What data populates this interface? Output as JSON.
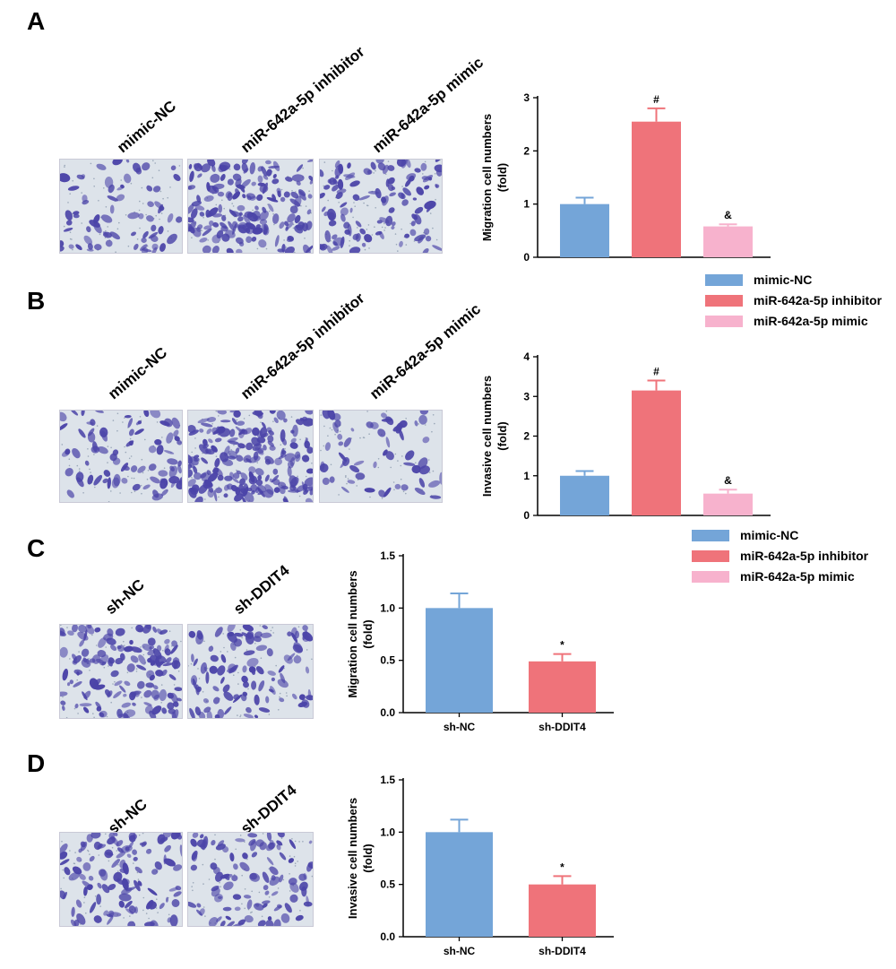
{
  "panels": {
    "A": {
      "letter": "A",
      "labels": [
        "mimic-NC",
        "miR-642a-5p inhibitor",
        "miR-642a-5p mimic"
      ]
    },
    "B": {
      "letter": "B",
      "labels": [
        "mimic-NC",
        "miR-642a-5p inhibitor",
        "miR-642a-5p mimic"
      ]
    },
    "C": {
      "letter": "C",
      "labels": [
        "sh-NC",
        "sh-DDIT4"
      ]
    },
    "D": {
      "letter": "D",
      "labels": [
        "sh-NC",
        "sh-DDIT4"
      ]
    }
  },
  "legend1": [
    "mimic-NC",
    "miR-642a-5p inhibitor",
    "miR-642a-5p mimic"
  ],
  "legend2": [
    "mimic-NC",
    "miR-642a-5p inhibitor",
    "miR-642a-5p mimic"
  ],
  "colors": {
    "blue": "#74a5d8",
    "red": "#ef737a",
    "pink": "#f7b2cd",
    "stain": "#4b44a8"
  },
  "chart_data": [
    {
      "id": "A",
      "type": "bar",
      "ylabel": "Migration cell numbers\n(fold)",
      "categories": [
        "mimic-NC",
        "miR-642a-5p inhibitor",
        "miR-642a-5p mimic"
      ],
      "values": [
        1.0,
        2.55,
        0.58
      ],
      "errors": [
        0.12,
        0.25,
        0.04
      ],
      "annotations": [
        "",
        "#",
        "&"
      ],
      "ylim": [
        0,
        3
      ],
      "yticks": [
        "0",
        "1",
        "2",
        "3"
      ],
      "show_xlabels": false
    },
    {
      "id": "B",
      "type": "bar",
      "ylabel": "Invasive cell numbers\n(fold)",
      "categories": [
        "mimic-NC",
        "miR-642a-5p inhibitor",
        "miR-642a-5p mimic"
      ],
      "values": [
        1.0,
        3.15,
        0.55
      ],
      "errors": [
        0.12,
        0.25,
        0.1
      ],
      "annotations": [
        "",
        "#",
        "&"
      ],
      "ylim": [
        0,
        4
      ],
      "yticks": [
        "0",
        "1",
        "2",
        "3",
        "4"
      ],
      "show_xlabels": false
    },
    {
      "id": "C",
      "type": "bar",
      "ylabel": "Migration cell numbers\n(fold)",
      "categories": [
        "sh-NC",
        "sh-DDIT4"
      ],
      "values": [
        1.0,
        0.49
      ],
      "errors": [
        0.14,
        0.07
      ],
      "annotations": [
        "",
        "*"
      ],
      "ylim": [
        0,
        1.5
      ],
      "yticks": [
        "0.0",
        "0.5",
        "1.0",
        "1.5"
      ],
      "show_xlabels": true
    },
    {
      "id": "D",
      "type": "bar",
      "ylabel": "Invasive cell numbers\n(fold)",
      "categories": [
        "sh-NC",
        "sh-DDIT4"
      ],
      "values": [
        1.0,
        0.5
      ],
      "errors": [
        0.12,
        0.08
      ],
      "annotations": [
        "",
        "*"
      ],
      "ylim": [
        0,
        1.5
      ],
      "yticks": [
        "0.0",
        "0.5",
        "1.0",
        "1.5"
      ],
      "show_xlabels": true
    }
  ]
}
